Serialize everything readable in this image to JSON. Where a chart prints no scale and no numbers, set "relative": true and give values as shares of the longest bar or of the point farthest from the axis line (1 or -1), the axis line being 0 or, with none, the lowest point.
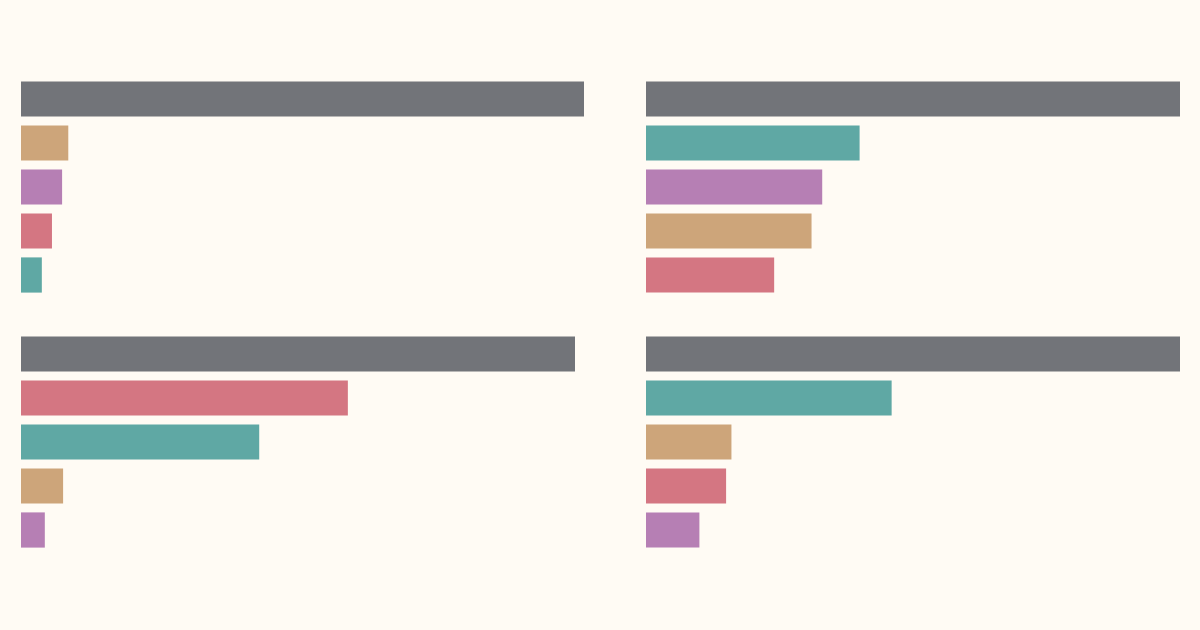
{
  "chart_data": [
    {
      "type": "bar",
      "orientation": "horizontal",
      "relative": true,
      "categories": [
        null,
        null,
        null,
        null,
        null
      ],
      "values": [
        1,
        0.084,
        0.073,
        0.055,
        0.037
      ],
      "colors": [
        "#727479",
        "#cda57a",
        "#b67fb4",
        "#d47682",
        "#5fa8a4"
      ]
    },
    {
      "type": "bar",
      "orientation": "horizontal",
      "relative": true,
      "categories": [
        null,
        null,
        null,
        null,
        null
      ],
      "values": [
        1,
        0.4,
        0.33,
        0.31,
        0.24
      ],
      "colors": [
        "#727479",
        "#5fa8a4",
        "#b67fb4",
        "#cda57a",
        "#d47682"
      ]
    },
    {
      "type": "bar",
      "orientation": "horizontal",
      "relative": true,
      "categories": [
        null,
        null,
        null,
        null,
        null
      ],
      "values": [
        1,
        0.59,
        0.43,
        0.076,
        0.043
      ],
      "colors": [
        "#727479",
        "#d47682",
        "#5fa8a4",
        "#cda57a",
        "#b67fb4"
      ]
    },
    {
      "type": "bar",
      "orientation": "horizontal",
      "relative": true,
      "categories": [
        null,
        null,
        null,
        null,
        null
      ],
      "values": [
        1,
        0.46,
        0.16,
        0.15,
        0.1
      ],
      "colors": [
        "#727479",
        "#5fa8a4",
        "#cda57a",
        "#d47682",
        "#b67fb4"
      ]
    }
  ]
}
